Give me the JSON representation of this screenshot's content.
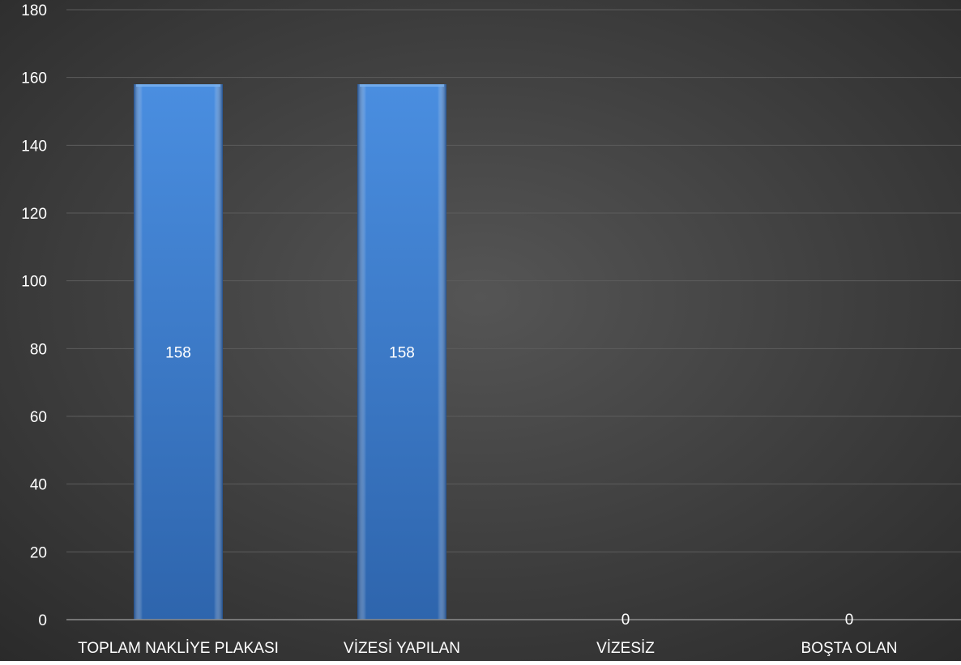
{
  "chart_data": {
    "type": "bar",
    "categories": [
      "TOPLAM NAKLİYE PLAKASI",
      "VİZESİ YAPILAN",
      "VİZESİZ",
      "BOŞTA OLAN"
    ],
    "values": [
      158,
      158,
      0,
      0
    ],
    "data_labels": [
      "158",
      "158",
      "0",
      "0"
    ],
    "title": "",
    "xlabel": "",
    "ylabel": "",
    "ylim": [
      0,
      180
    ],
    "yticks": [
      0,
      20,
      40,
      60,
      80,
      100,
      120,
      140,
      160,
      180
    ],
    "ytick_labels": [
      "0",
      "20",
      "40",
      "60",
      "80",
      "100",
      "120",
      "140",
      "160",
      "180"
    ],
    "grid": true,
    "legend": "none"
  },
  "colors": {
    "background_center": "#555555",
    "background_edge": "#2a2a2a",
    "bar_top": "#4a8ee0",
    "bar_bottom": "#2e65ad",
    "gridline": "#5c5c5c",
    "axis_line": "#8c8c8c",
    "text": "#ffffff"
  }
}
